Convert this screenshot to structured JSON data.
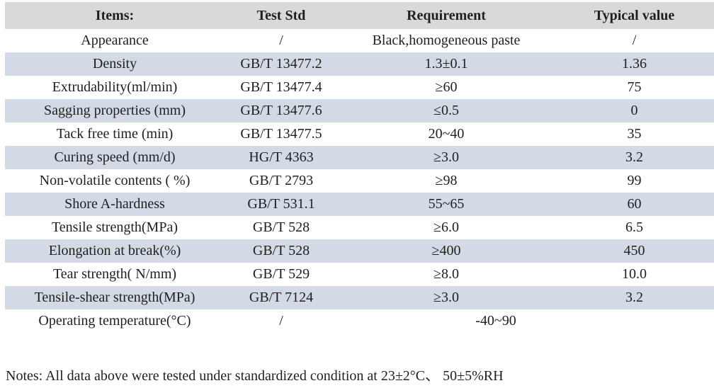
{
  "colors": {
    "header_bg": "#d9d9d9",
    "shaded_row_bg": "#d3dae5",
    "text": "#1f1f1f",
    "background": "#ffffff"
  },
  "table": {
    "headers": {
      "item": "Items:",
      "std": "Test Std",
      "req": "Requirement",
      "typ": "Typical value"
    },
    "rows": [
      {
        "item": "Appearance",
        "std": "/",
        "req": "Black,homogeneous paste",
        "typ": "/",
        "shaded": false,
        "merged": false
      },
      {
        "item": "Density",
        "std": "GB/T 13477.2",
        "req": "1.3±0.1",
        "typ": "1.36",
        "shaded": true,
        "merged": false
      },
      {
        "item": "Extrudability(ml/min)",
        "std": "GB/T 13477.4",
        "req": "≥60",
        "typ": "75",
        "shaded": false,
        "merged": false
      },
      {
        "item": "Sagging properties (mm)",
        "std": "GB/T 13477.6",
        "req": "≤0.5",
        "typ": "0",
        "shaded": true,
        "merged": false
      },
      {
        "item": "Tack free time (min)",
        "std": "GB/T 13477.5",
        "req": "20~40",
        "typ": "35",
        "shaded": false,
        "merged": false
      },
      {
        "item": "Curing speed (mm/d)",
        "std": "HG/T 4363",
        "req": "≥3.0",
        "typ": "3.2",
        "shaded": true,
        "merged": false
      },
      {
        "item": "Non-volatile contents ( %)",
        "std": "GB/T 2793",
        "req": "≥98",
        "typ": "99",
        "shaded": false,
        "merged": false
      },
      {
        "item": "Shore A-hardness",
        "std": "GB/T 531.1",
        "req": "55~65",
        "typ": "60",
        "shaded": true,
        "merged": false
      },
      {
        "item": "Tensile strength(MPa)",
        "std": "GB/T 528",
        "req": "≥6.0",
        "typ": "6.5",
        "shaded": false,
        "merged": false
      },
      {
        "item": "Elongation at break(%)",
        "std": "GB/T 528",
        "req": "≥400",
        "typ": "450",
        "shaded": true,
        "merged": false
      },
      {
        "item": "Tear strength( N/mm)",
        "std": "GB/T 529",
        "req": "≥8.0",
        "typ": "10.0",
        "shaded": false,
        "merged": false
      },
      {
        "item": "Tensile-shear strength(MPa)",
        "std": "GB/T 7124",
        "req": "≥3.0",
        "typ": "3.2",
        "shaded": true,
        "merged": false
      },
      {
        "item": "Operating temperature(°C)",
        "std": "/",
        "req": "-40~90",
        "typ": null,
        "shaded": false,
        "merged": true
      }
    ]
  },
  "notes": "Notes: All data above were tested under standardized condition at 23±2°C、 50±5%RH"
}
